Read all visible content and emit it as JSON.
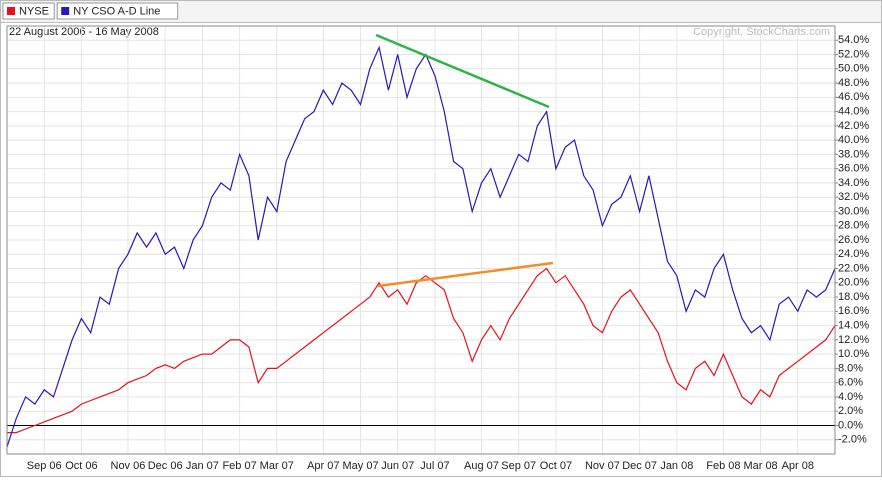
{
  "chart_data": {
    "type": "line",
    "subtitle": "22 August 2006 - 16 May 2008",
    "annotations": [
      "Copyright, StockCharts.com"
    ],
    "categories": [
      null,
      null,
      null,
      null,
      "Sep 06",
      null,
      null,
      null,
      "Oct 06",
      null,
      null,
      null,
      null,
      "Nov 06",
      null,
      null,
      null,
      "Dec 06",
      null,
      null,
      null,
      "Jan 07",
      null,
      null,
      null,
      "Feb 07",
      null,
      null,
      null,
      "Mar 07",
      null,
      null,
      null,
      null,
      "Apr 07",
      null,
      null,
      null,
      "May 07",
      null,
      null,
      null,
      "Jun 07",
      null,
      null,
      null,
      "Jul 07",
      null,
      null,
      null,
      null,
      "Aug 07",
      null,
      null,
      null,
      "Sep 07",
      null,
      null,
      null,
      "Oct 07",
      null,
      null,
      null,
      null,
      "Nov 07",
      null,
      null,
      null,
      "Dec 07",
      null,
      null,
      null,
      "Jan 08",
      null,
      null,
      null,
      null,
      "Feb 08",
      null,
      null,
      null,
      "Mar 08",
      null,
      null,
      null,
      "Apr 08",
      null,
      null,
      null,
      null
    ],
    "series": [
      {
        "name": "NYSE",
        "color": "#e8121c",
        "values": [
          -1,
          -1,
          -0.5,
          0,
          0.5,
          1,
          1.5,
          2,
          3,
          3.5,
          4,
          4.5,
          5,
          6,
          6.5,
          7,
          8,
          8.5,
          8,
          9,
          9.5,
          10,
          10,
          11,
          12,
          12,
          11,
          6,
          8,
          8,
          9,
          10,
          11,
          12,
          13,
          14,
          15,
          16,
          17,
          18,
          20,
          18,
          19,
          17,
          20,
          21,
          20,
          19,
          15,
          13,
          9,
          12,
          14,
          12,
          15,
          17,
          19,
          21,
          22,
          20,
          21,
          19,
          17,
          14,
          13,
          16,
          18,
          19,
          17,
          15,
          13,
          9,
          6,
          5,
          8,
          9,
          7,
          10,
          7,
          4,
          3,
          5,
          4,
          7,
          8,
          9,
          10,
          11,
          12,
          14
        ]
      },
      {
        "name": "NY CSO A-D Line",
        "color": "#2a18b8",
        "values": [
          -3,
          1,
          4,
          3,
          5,
          4,
          8,
          12,
          15,
          13,
          18,
          17,
          22,
          24,
          27,
          25,
          27,
          24,
          25,
          22,
          26,
          28,
          32,
          34,
          33,
          38,
          35,
          26,
          32,
          30,
          37,
          40,
          43,
          44,
          47,
          45,
          48,
          47,
          45,
          50,
          53,
          47,
          52,
          46,
          50,
          52,
          49,
          44,
          37,
          36,
          30,
          34,
          36,
          32,
          35,
          38,
          37,
          42,
          44,
          36,
          39,
          40,
          35,
          33,
          28,
          31,
          32,
          35,
          30,
          35,
          29,
          23,
          21,
          16,
          19,
          18,
          22,
          24,
          19,
          15,
          13,
          14,
          12,
          17,
          18,
          16,
          19,
          18,
          19,
          22
        ]
      }
    ],
    "ylim": [
      -4,
      56
    ],
    "yticks": [
      {
        "value": -2,
        "label": "-2.0%"
      },
      {
        "value": 0,
        "label": "0.0%"
      },
      {
        "value": 2,
        "label": "2.0%"
      },
      {
        "value": 4,
        "label": "4.0%"
      },
      {
        "value": 6,
        "label": "6.0%"
      },
      {
        "value": 8,
        "label": "8.0%"
      },
      {
        "value": 10,
        "label": "10.0%"
      },
      {
        "value": 12,
        "label": "12.0%"
      },
      {
        "value": 14,
        "label": "14.0%"
      },
      {
        "value": 16,
        "label": "16.0%"
      },
      {
        "value": 18,
        "label": "18.0%"
      },
      {
        "value": 20,
        "label": "20.0%"
      },
      {
        "value": 22,
        "label": "22.0%"
      },
      {
        "value": 24,
        "label": "24.0%"
      },
      {
        "value": 26,
        "label": "26.0%"
      },
      {
        "value": 28,
        "label": "28.0%"
      },
      {
        "value": 30,
        "label": "30.0%"
      },
      {
        "value": 32,
        "label": "32.0%"
      },
      {
        "value": 34,
        "label": "34.0%"
      },
      {
        "value": 36,
        "label": "36.0%"
      },
      {
        "value": 38,
        "label": "38.0%"
      },
      {
        "value": 40,
        "label": "40.0%"
      },
      {
        "value": 42,
        "label": "42.0%"
      },
      {
        "value": 44,
        "label": "44.0%"
      },
      {
        "value": 46,
        "label": "46.0%"
      },
      {
        "value": 48,
        "label": "48.0%"
      },
      {
        "value": 50,
        "label": "50.0%"
      },
      {
        "value": 52,
        "label": "52.0%"
      },
      {
        "value": 54,
        "label": "54.0%"
      }
    ],
    "grid": true
  }
}
